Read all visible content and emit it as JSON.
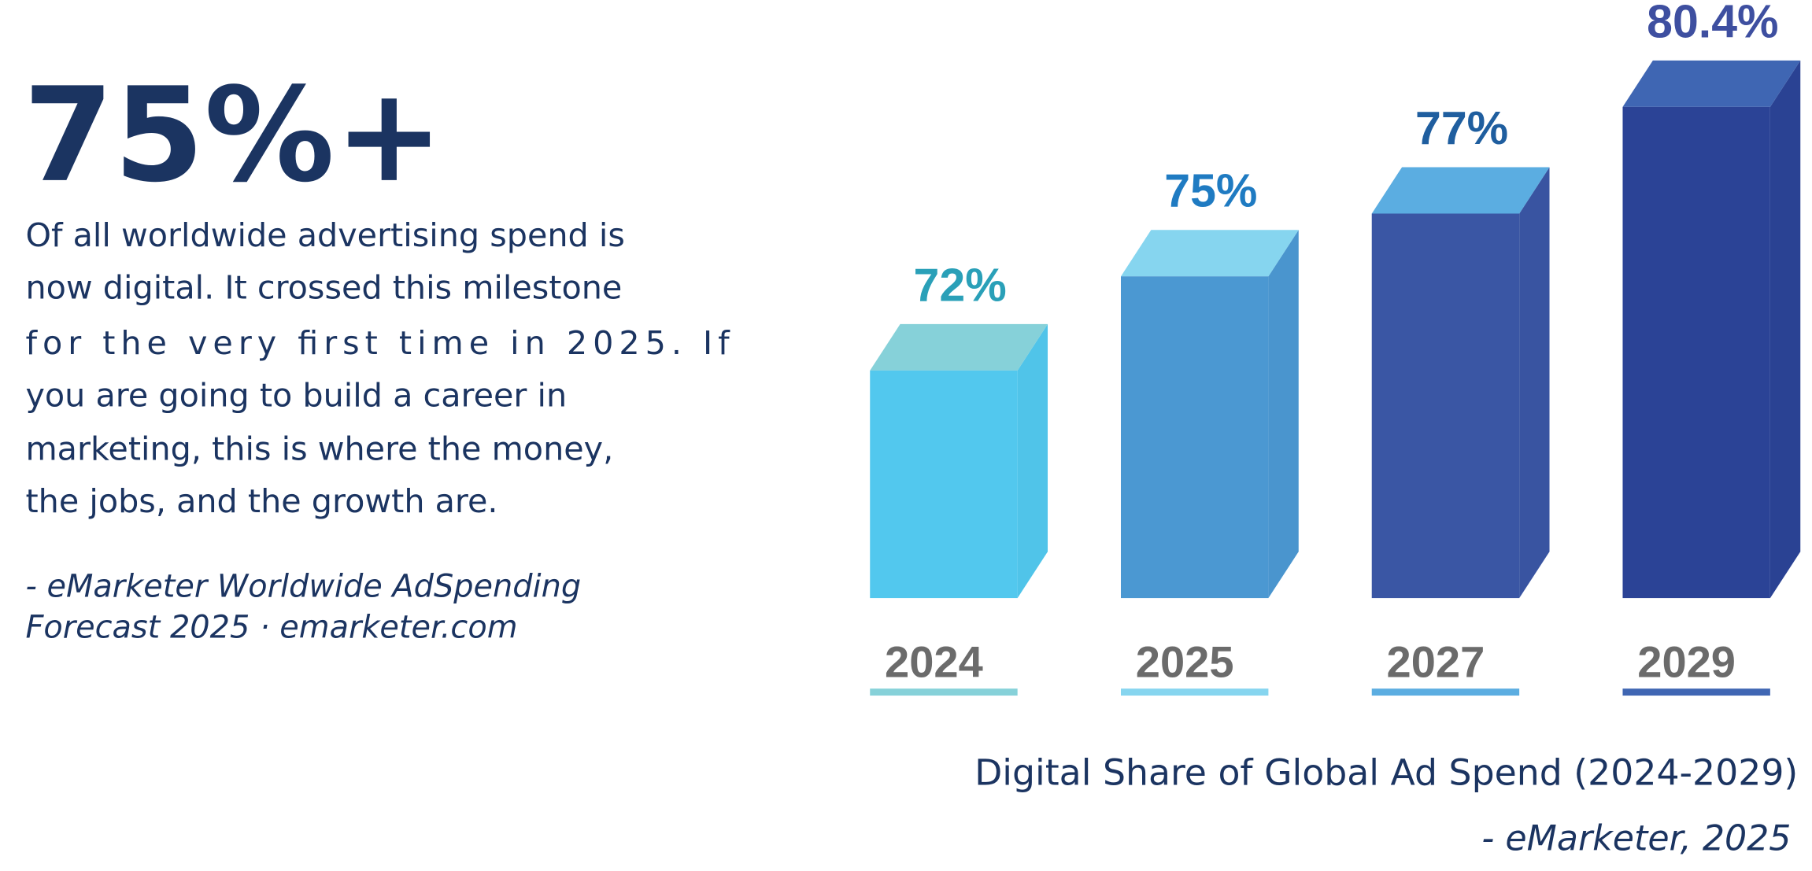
{
  "headline": {
    "stat": "75%+",
    "body_lines": [
      "Of all worldwide advertising spend is",
      "now digital. It crossed this milestone",
      "for the very first time in 2025. If",
      "you are going to build a career in",
      "marketing, this is where the money,",
      "the jobs, and the growth are."
    ],
    "source_lines": [
      "- eMarketer Worldwide AdSpending",
      "Forecast 2025 · emarketer.com"
    ]
  },
  "chart_data": {
    "type": "bar3d",
    "title": "Digital Share of Global Ad Spend (2024-2029)",
    "subtitle": "- eMarketer, 2025",
    "categories": [
      "2024",
      "2025",
      "2027",
      "2029"
    ],
    "values": [
      72,
      75,
      77,
      80.4
    ],
    "value_labels": [
      "72%",
      "75%",
      "77%",
      "80.4%"
    ],
    "front_colors": [
      "#52c8ee",
      "#4b98d2",
      "#3a56a4",
      "#2b4396"
    ],
    "top_colors": [
      "#86d1d9",
      "#86d5ef",
      "#5badE1",
      "#3f66b3"
    ],
    "label_colors": [
      "#2aa0b8",
      "#1f7bc2",
      "#1f5e9f",
      "#3e4fa0"
    ]
  }
}
